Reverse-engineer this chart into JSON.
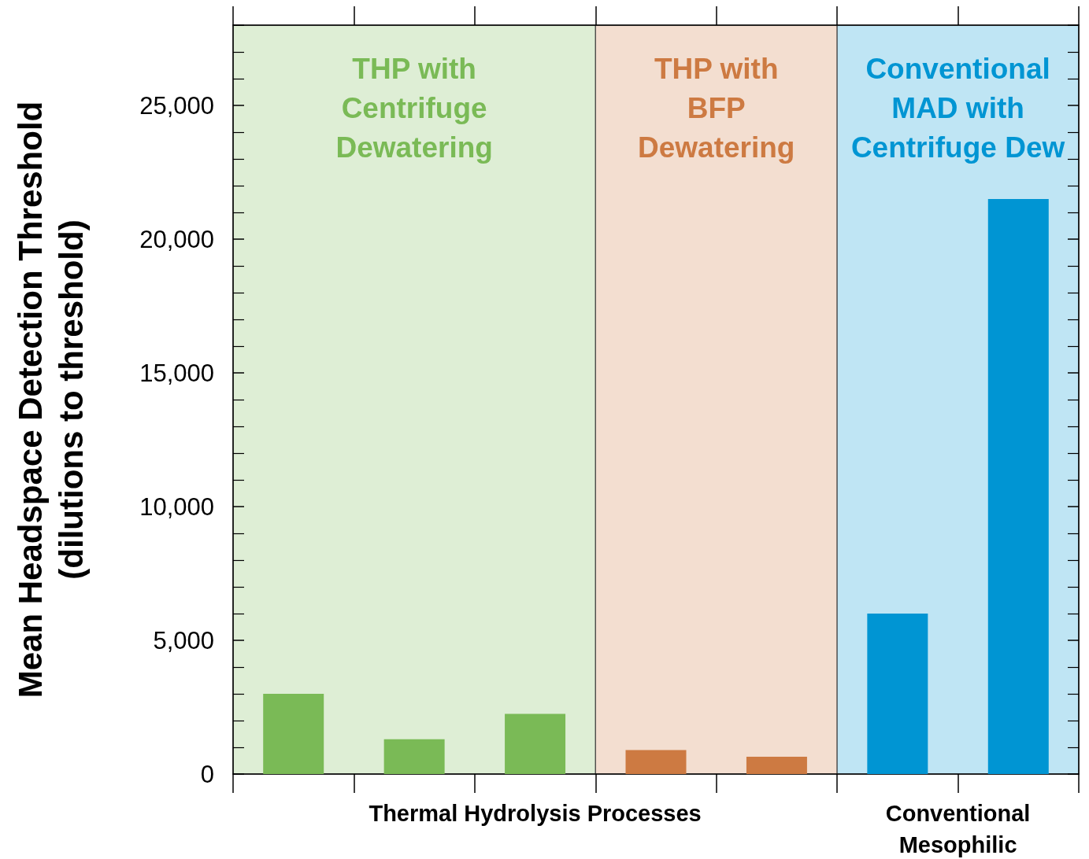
{
  "chart_data": {
    "type": "bar",
    "ylabel": "Mean Headspace Detection Threshold\n(dilutions to threshold)",
    "categories": [
      null,
      null,
      null,
      null,
      null,
      null,
      null
    ],
    "series": [
      {
        "name": "THP with\nCentrifuge\nDewatering",
        "color": "#7aba56",
        "values": [
          3000,
          1300,
          2250,
          null,
          null,
          null,
          null
        ]
      },
      {
        "name": "THP with\nBFP\nDewatering",
        "color": "#cd7a42",
        "values": [
          null,
          null,
          null,
          900,
          650,
          null,
          null
        ]
      },
      {
        "name": "Conventional\nMAD with\nCentrifuge Dew",
        "color": "#0095d3",
        "values": [
          null,
          null,
          null,
          null,
          null,
          6000,
          21500
        ]
      }
    ],
    "ylim": [
      0,
      28000
    ],
    "yticks": [
      0,
      {
        "value": 5000,
        "label": "5,000"
      },
      {
        "value": 10000,
        "label": "10,000"
      },
      {
        "value": 15000,
        "label": "15,000"
      },
      {
        "value": 20000,
        "label": "20,000"
      },
      {
        "value": 25000,
        "label": "25,000"
      }
    ],
    "grid": false,
    "legend": false,
    "annotations": [
      "Thermal Hydrolysis Processes",
      "Conventional\nMesophilic"
    ]
  }
}
